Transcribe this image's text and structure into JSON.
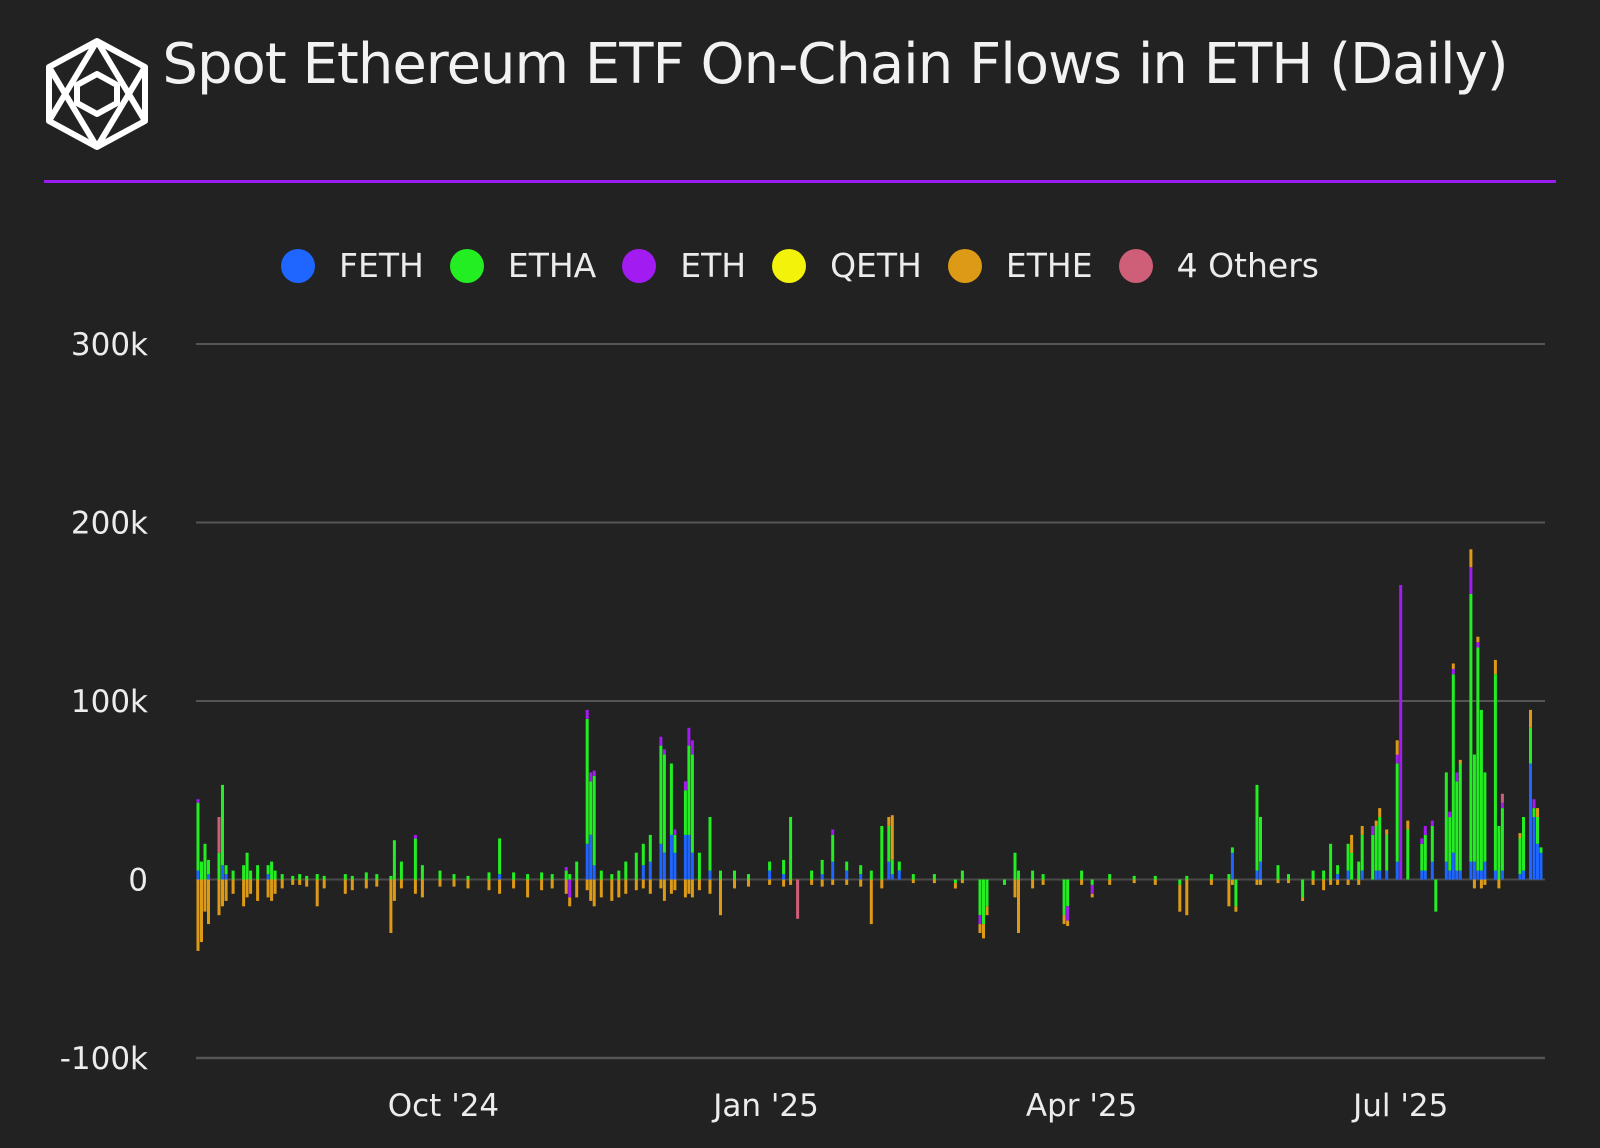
{
  "colors": {
    "background": "#222222",
    "accent": "#9a1cf0",
    "FETH": "#1e66ff",
    "ETHA": "#22ee22",
    "ETH": "#a21cf2",
    "QETH": "#f2f20a",
    "ETHE": "#dd9a16",
    "Others": "#cf5f78"
  },
  "logo_icon": "cube-logo-icon",
  "chart_data": {
    "type": "bar",
    "stacked": true,
    "title": "Spot Ethereum ETF On-Chain Flows in ETH (Daily)",
    "xlabel": "",
    "ylabel": "",
    "ylim": [
      -100000,
      300000
    ],
    "yticks": [
      300000,
      200000,
      100000,
      0,
      -100000
    ],
    "ytick_labels": [
      "300k",
      "200k",
      "100k",
      "0",
      "-100k"
    ],
    "grid": true,
    "legend_position": "top-center",
    "legend": [
      "FETH",
      "ETHA",
      "ETH",
      "QETH",
      "ETHE",
      "4 Others"
    ],
    "x_range": [
      "2024-07-23",
      "2025-08-10"
    ],
    "xticks": [
      {
        "date": "2024-10-01",
        "label": "Oct '24"
      },
      {
        "date": "2025-01-01",
        "label": "Jan '25"
      },
      {
        "date": "2025-04-01",
        "label": "Apr '25"
      },
      {
        "date": "2025-07-01",
        "label": "Jul '25"
      }
    ],
    "bars": [
      {
        "date": "2024-07-23",
        "FETH": 5000,
        "ETHA": 38000,
        "ETH": 2000,
        "ETHE": -40000
      },
      {
        "date": "2024-07-24",
        "ETHA": 10000,
        "ETHE": -35000
      },
      {
        "date": "2024-07-25",
        "ETHA": 20000,
        "ETHE": -18000
      },
      {
        "date": "2024-07-26",
        "FETH": 3000,
        "ETHA": 8000,
        "ETHE": -25000
      },
      {
        "date": "2024-07-29",
        "ETHA": 15000,
        "Others": 20000,
        "ETHE": -20000
      },
      {
        "date": "2024-07-30",
        "FETH": 8000,
        "ETHA": 45000,
        "ETHE": -15000
      },
      {
        "date": "2024-07-31",
        "FETH": 3000,
        "ETHA": 5000,
        "ETHE": -12000
      },
      {
        "date": "2024-08-02",
        "ETHA": 5000,
        "ETHE": -8000
      },
      {
        "date": "2024-08-05",
        "ETHA": 8000,
        "ETHE": -15000
      },
      {
        "date": "2024-08-06",
        "ETHA": 15000,
        "ETHE": -10000
      },
      {
        "date": "2024-08-07",
        "ETHA": 5000,
        "ETHE": -8000
      },
      {
        "date": "2024-08-09",
        "ETHA": 8000,
        "ETHE": -12000
      },
      {
        "date": "2024-08-12",
        "FETH": 3000,
        "ETHA": 5000,
        "ETHE": -10000
      },
      {
        "date": "2024-08-13",
        "ETHA": 10000,
        "ETHE": -12000
      },
      {
        "date": "2024-08-14",
        "ETHA": 5000,
        "ETHE": -8000
      },
      {
        "date": "2024-08-16",
        "ETHA": 3000,
        "ETHE": -5000
      },
      {
        "date": "2024-08-19",
        "ETHA": 2000,
        "ETHE": -3000
      },
      {
        "date": "2024-08-21",
        "ETHA": 3000,
        "ETHE": -3000
      },
      {
        "date": "2024-08-23",
        "ETHA": 2000,
        "ETHE": -4000
      },
      {
        "date": "2024-08-26",
        "ETHA": 3000,
        "ETHE": -15000
      },
      {
        "date": "2024-08-28",
        "ETHA": 2000,
        "ETHE": -5000
      },
      {
        "date": "2024-09-03",
        "ETHA": 3000,
        "ETHE": -8000
      },
      {
        "date": "2024-09-05",
        "ETHA": 2000,
        "ETHE": -6000
      },
      {
        "date": "2024-09-09",
        "ETHA": 4000,
        "ETHE": -5000
      },
      {
        "date": "2024-09-12",
        "ETHA": 3000,
        "ETHE": -4000
      },
      {
        "date": "2024-09-16",
        "ETHA": 2000,
        "ETHE": -30000
      },
      {
        "date": "2024-09-17",
        "ETHA": 22000,
        "ETHE": -12000
      },
      {
        "date": "2024-09-19",
        "ETHA": 10000,
        "ETHE": -5000
      },
      {
        "date": "2024-09-23",
        "ETHA": 23000,
        "ETH": 2000,
        "ETHE": -8000
      },
      {
        "date": "2024-09-25",
        "ETHA": 8000,
        "ETHE": -10000
      },
      {
        "date": "2024-09-30",
        "ETHA": 5000,
        "ETHE": -4000
      },
      {
        "date": "2024-10-04",
        "ETHA": 3000,
        "ETHE": -4000
      },
      {
        "date": "2024-10-08",
        "ETHA": 2000,
        "ETHE": -5000
      },
      {
        "date": "2024-10-14",
        "ETHA": 4000,
        "ETHE": -6000
      },
      {
        "date": "2024-10-17",
        "FETH": 3000,
        "ETHA": 20000,
        "ETHE": -8000
      },
      {
        "date": "2024-10-21",
        "ETHA": 4000,
        "ETHE": -5000
      },
      {
        "date": "2024-10-25",
        "ETHA": 3000,
        "ETHE": -10000
      },
      {
        "date": "2024-10-29",
        "ETHA": 4000,
        "ETHE": -6000
      },
      {
        "date": "2024-11-01",
        "ETHA": 3000,
        "ETHE": -5000
      },
      {
        "date": "2024-11-05",
        "ETHA": 5000,
        "ETH": 2000,
        "ETHE": -8000
      },
      {
        "date": "2024-11-06",
        "ETHA": 3000,
        "ETH": -10000,
        "ETHE": -5000
      },
      {
        "date": "2024-11-08",
        "ETHA": 10000,
        "ETHE": -10000
      },
      {
        "date": "2024-11-11",
        "FETH": 20000,
        "ETHA": 70000,
        "ETH": 5000,
        "ETHE": -6000
      },
      {
        "date": "2024-11-12",
        "FETH": 25000,
        "ETHA": 30000,
        "ETH": 5000,
        "ETHE": -12000
      },
      {
        "date": "2024-11-13",
        "FETH": 8000,
        "ETHA": 50000,
        "ETH": 3000,
        "ETHE": -15000
      },
      {
        "date": "2024-11-15",
        "ETHA": 5000,
        "ETHE": -10000
      },
      {
        "date": "2024-11-18",
        "ETHA": 3000,
        "ETHE": -12000
      },
      {
        "date": "2024-11-20",
        "ETHA": 5000,
        "ETHE": -10000
      },
      {
        "date": "2024-11-22",
        "ETHA": 10000,
        "ETHE": -8000
      },
      {
        "date": "2024-11-25",
        "ETHA": 15000,
        "ETHE": -6000
      },
      {
        "date": "2024-11-27",
        "FETH": 8000,
        "ETHA": 12000,
        "ETHE": -5000
      },
      {
        "date": "2024-11-29",
        "FETH": 10000,
        "ETHA": 15000,
        "ETHE": -8000
      },
      {
        "date": "2024-12-02",
        "FETH": 20000,
        "ETHA": 55000,
        "ETH": 5000,
        "ETHE": -5000
      },
      {
        "date": "2024-12-03",
        "FETH": 15000,
        "ETHA": 55000,
        "ETH": 3000,
        "ETHE": -12000
      },
      {
        "date": "2024-12-05",
        "FETH": 25000,
        "ETHA": 40000,
        "ETHE": -8000
      },
      {
        "date": "2024-12-06",
        "FETH": 15000,
        "ETHA": 10000,
        "ETH": 3000,
        "ETHE": -6000
      },
      {
        "date": "2024-12-09",
        "FETH": 25000,
        "ETHA": 25000,
        "ETH": 5000,
        "ETHE": -10000
      },
      {
        "date": "2024-12-10",
        "FETH": 25000,
        "ETHA": 50000,
        "ETH": 10000,
        "ETHE": -8000
      },
      {
        "date": "2024-12-11",
        "FETH": 15000,
        "ETHA": 55000,
        "ETH": 8000,
        "ETHE": -10000
      },
      {
        "date": "2024-12-13",
        "ETHA": 15000,
        "ETHE": -6000
      },
      {
        "date": "2024-12-16",
        "FETH": 5000,
        "ETHA": 30000,
        "ETHE": -8000
      },
      {
        "date": "2024-12-19",
        "ETHA": 5000,
        "ETHE": -20000
      },
      {
        "date": "2024-12-23",
        "ETHA": 5000,
        "ETHE": -5000
      },
      {
        "date": "2024-12-27",
        "ETHA": 3000,
        "ETHE": -4000
      },
      {
        "date": "2025-01-02",
        "FETH": 5000,
        "ETHA": 5000,
        "ETHE": -3000
      },
      {
        "date": "2025-01-06",
        "FETH": 3000,
        "ETHA": 8000,
        "ETHE": -4000
      },
      {
        "date": "2025-01-08",
        "ETHA": 35000,
        "ETHE": -3000
      },
      {
        "date": "2025-01-10",
        "Others": -22000
      },
      {
        "date": "2025-01-14",
        "ETHA": 5000,
        "ETHE": -3000
      },
      {
        "date": "2025-01-17",
        "FETH": 3000,
        "ETHA": 8000,
        "ETHE": -4000
      },
      {
        "date": "2025-01-20",
        "FETH": 10000,
        "ETHA": 15000,
        "ETH": 3000,
        "ETHE": -3000
      },
      {
        "date": "2025-01-24",
        "FETH": 5000,
        "ETHA": 5000,
        "ETHE": -3000
      },
      {
        "date": "2025-01-28",
        "FETH": 3000,
        "ETHA": 5000,
        "ETHE": -4000
      },
      {
        "date": "2025-01-31",
        "ETHA": 5000,
        "ETHE": -25000
      },
      {
        "date": "2025-02-03",
        "ETHA": 30000,
        "ETHE": -5000
      },
      {
        "date": "2025-02-05",
        "FETH": 10000,
        "ETHA": 20000,
        "ETHE": 5000
      },
      {
        "date": "2025-02-06",
        "FETH": 3000,
        "ETHA": 8000,
        "ETHE": 25000
      },
      {
        "date": "2025-02-08",
        "FETH": 5000,
        "ETHA": 5000
      },
      {
        "date": "2025-02-12",
        "ETHA": 3000,
        "ETHE": -2000
      },
      {
        "date": "2025-02-18",
        "ETHA": 3000,
        "ETHE": -2000
      },
      {
        "date": "2025-02-24",
        "ETHA": -2000,
        "ETHE": -3000
      },
      {
        "date": "2025-02-26",
        "ETHA": 5000,
        "ETHE": -2000
      },
      {
        "date": "2025-03-03",
        "ETHA": -20000,
        "ETH": -5000,
        "ETHE": -5000
      },
      {
        "date": "2025-03-04",
        "ETHA": -25000,
        "ETHE": -8000
      },
      {
        "date": "2025-03-05",
        "ETHA": -15000,
        "ETHE": -5000
      },
      {
        "date": "2025-03-10",
        "ETHA": -3000
      },
      {
        "date": "2025-03-13",
        "ETHA": 15000,
        "ETHE": -10000
      },
      {
        "date": "2025-03-14",
        "ETHA": 5000,
        "ETHE": -30000
      },
      {
        "date": "2025-03-18",
        "ETHA": 5000,
        "ETHE": -5000
      },
      {
        "date": "2025-03-21",
        "ETHA": 3000,
        "ETHE": -3000
      },
      {
        "date": "2025-03-27",
        "ETHA": -20000,
        "ETHE": -5000
      },
      {
        "date": "2025-03-28",
        "ETHA": -15000,
        "ETH": -8000,
        "ETHE": -3000
      },
      {
        "date": "2025-04-01",
        "ETHA": 5000,
        "ETHE": -3000
      },
      {
        "date": "2025-04-04",
        "ETHA": -3000,
        "ETH": -5000,
        "ETHE": -2000
      },
      {
        "date": "2025-04-09",
        "ETHA": 3000,
        "ETHE": -3000
      },
      {
        "date": "2025-04-16",
        "ETHA": 2000,
        "ETHE": -2000
      },
      {
        "date": "2025-04-22",
        "ETHA": 2000,
        "ETHE": -3000
      },
      {
        "date": "2025-04-29",
        "ETHA": -3000,
        "ETHE": -15000
      },
      {
        "date": "2025-05-01",
        "ETHA": 2000,
        "ETHE": -20000
      },
      {
        "date": "2025-05-08",
        "ETHA": 3000,
        "ETHE": -3000
      },
      {
        "date": "2025-05-13",
        "ETHA": 3000,
        "ETHE": -15000
      },
      {
        "date": "2025-05-14",
        "FETH": 15000,
        "ETHA": 3000,
        "ETHE": -3000
      },
      {
        "date": "2025-05-15",
        "ETHA": -15000,
        "ETHE": -3000
      },
      {
        "date": "2025-05-21",
        "FETH": 5000,
        "ETHA": 48000,
        "ETHE": -3000
      },
      {
        "date": "2025-05-22",
        "FETH": 10000,
        "ETHA": 25000,
        "ETHE": -3000
      },
      {
        "date": "2025-05-27",
        "ETHA": 8000,
        "ETHE": -2000
      },
      {
        "date": "2025-05-30",
        "ETHA": 3000,
        "ETHE": -2000
      },
      {
        "date": "2025-06-03",
        "ETHA": -10000,
        "ETHE": -2000
      },
      {
        "date": "2025-06-06",
        "ETHA": 5000,
        "ETHE": -3000
      },
      {
        "date": "2025-06-09",
        "ETHA": 5000,
        "ETHE": -6000
      },
      {
        "date": "2025-06-11",
        "ETHA": 20000,
        "ETHE": -3000
      },
      {
        "date": "2025-06-13",
        "FETH": 3000,
        "ETHA": 5000,
        "ETHE": -3000
      },
      {
        "date": "2025-06-16",
        "FETH": 5000,
        "ETHA": 15000,
        "ETHE": -3000
      },
      {
        "date": "2025-06-17",
        "ETHA": 15000,
        "ETHE": 10000
      },
      {
        "date": "2025-06-19",
        "ETHA": 10000,
        "ETHE": -3000
      },
      {
        "date": "2025-06-20",
        "FETH": 5000,
        "ETHA": 20000,
        "ETHE": 5000
      },
      {
        "date": "2025-06-23",
        "ETHA": 25000,
        "ETH": 5000
      },
      {
        "date": "2025-06-24",
        "FETH": 5000,
        "ETHA": 25000,
        "ETHE": 3000
      },
      {
        "date": "2025-06-25",
        "FETH": 5000,
        "ETHA": 30000,
        "ETHE": 5000
      },
      {
        "date": "2025-06-27",
        "FETH": 5000,
        "ETHA": 20000,
        "ETHE": 3000
      },
      {
        "date": "2025-06-30",
        "FETH": 10000,
        "ETHA": 55000,
        "ETH": 5000,
        "ETHE": 8000
      },
      {
        "date": "2025-07-01",
        "ETH": 165000
      },
      {
        "date": "2025-07-03",
        "ETHA": 28000,
        "ETHE": 5000
      },
      {
        "date": "2025-07-07",
        "FETH": 5000,
        "ETHA": 15000,
        "ETH": 3000
      },
      {
        "date": "2025-07-08",
        "FETH": 5000,
        "ETHA": 20000,
        "ETH": 5000
      },
      {
        "date": "2025-07-10",
        "FETH": 10000,
        "ETHA": 20000,
        "ETH": 3000
      },
      {
        "date": "2025-07-11",
        "ETHA": -18000
      },
      {
        "date": "2025-07-14",
        "FETH": 10000,
        "ETHA": 50000
      },
      {
        "date": "2025-07-15",
        "FETH": 5000,
        "ETHA": 30000,
        "ETH": 3000
      },
      {
        "date": "2025-07-16",
        "FETH": 15000,
        "ETHA": 100000,
        "ETH": 3000,
        "ETHE": 3000
      },
      {
        "date": "2025-07-17",
        "FETH": 5000,
        "ETHA": 50000,
        "ETH": 5000
      },
      {
        "date": "2025-07-18",
        "FETH": 5000,
        "ETHA": 60000,
        "ETHE": 2000
      },
      {
        "date": "2025-07-21",
        "FETH": 10000,
        "ETHA": 150000,
        "ETH": 15000,
        "ETHE": 10000
      },
      {
        "date": "2025-07-22",
        "FETH": 10000,
        "ETHA": 60000,
        "ETHE": -5000
      },
      {
        "date": "2025-07-23",
        "FETH": 5000,
        "ETHA": 125000,
        "ETH": 3000,
        "ETHE": 3000
      },
      {
        "date": "2025-07-24",
        "FETH": 5000,
        "ETHA": 90000,
        "ETHE": -5000
      },
      {
        "date": "2025-07-25",
        "FETH": 10000,
        "ETHA": 50000,
        "ETHE": -3000
      },
      {
        "date": "2025-07-28",
        "FETH": 5000,
        "ETHA": 110000,
        "ETHE": 8000
      },
      {
        "date": "2025-07-29",
        "ETHA": 30000,
        "ETHE": -5000
      },
      {
        "date": "2025-07-30",
        "FETH": 5000,
        "ETHA": 35000,
        "ETH": 3000,
        "Others": 5000
      },
      {
        "date": "2025-08-04",
        "FETH": 3000,
        "ETHA": 20000,
        "ETHE": 3000
      },
      {
        "date": "2025-08-05",
        "FETH": 5000,
        "ETHA": 30000
      },
      {
        "date": "2025-08-07",
        "FETH": 65000,
        "ETHA": 20000,
        "ETHE": 10000
      },
      {
        "date": "2025-08-08",
        "FETH": 35000,
        "ETHA": 5000,
        "ETH": 5000
      },
      {
        "date": "2025-08-09",
        "FETH": 20000,
        "ETHA": 15000,
        "ETHE": 5000
      },
      {
        "date": "2025-08-10",
        "FETH": 15000,
        "ETHA": 3000
      }
    ]
  }
}
